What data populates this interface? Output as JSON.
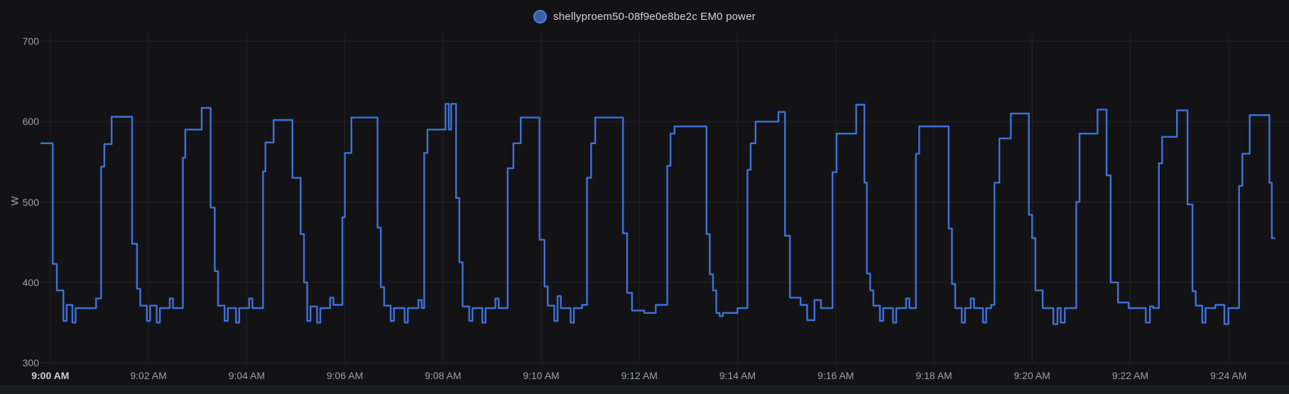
{
  "legend": {
    "series_label": "shellyproem50-08f9e0e8be2c EM0 power"
  },
  "colors": {
    "background": "#131316",
    "footer_band": "#1c1d21",
    "grid": "#222329",
    "axis_text": "#9da0a6",
    "axis_text_emphasis": "#cfd1d5",
    "legend_text": "#d4d5d8",
    "series_line": "#3e72d9",
    "legend_dot_fill": "#3b5da2",
    "legend_dot_ring": "#5180e2"
  },
  "chart_data": {
    "type": "line",
    "step_mode": "after",
    "title": "shellyproem50-08f9e0e8be2c EM0 power",
    "xlabel": "",
    "ylabel": "W",
    "unit": "W",
    "x_unit": "seconds after 9:00 AM",
    "xlim": [
      -12,
      1514
    ],
    "ylim": [
      300,
      700
    ],
    "grid": true,
    "legend_position": "top-center",
    "y_ticks": [
      {
        "v": 700,
        "label": "700"
      },
      {
        "v": 600,
        "label": "600"
      },
      {
        "v": 500,
        "label": "500"
      },
      {
        "v": 400,
        "label": "400"
      },
      {
        "v": 300,
        "label": "300"
      }
    ],
    "x_ticks": [
      {
        "t": 0,
        "label": "9:00 AM",
        "emphasis": true
      },
      {
        "t": 120,
        "label": "9:02 AM",
        "emphasis": false
      },
      {
        "t": 240,
        "label": "9:04 AM",
        "emphasis": false
      },
      {
        "t": 360,
        "label": "9:06 AM",
        "emphasis": false
      },
      {
        "t": 480,
        "label": "9:08 AM",
        "emphasis": false
      },
      {
        "t": 600,
        "label": "9:10 AM",
        "emphasis": false
      },
      {
        "t": 720,
        "label": "9:12 AM",
        "emphasis": false
      },
      {
        "t": 840,
        "label": "9:14 AM",
        "emphasis": false
      },
      {
        "t": 960,
        "label": "9:16 AM",
        "emphasis": false
      },
      {
        "t": 1080,
        "label": "9:18 AM",
        "emphasis": false
      },
      {
        "t": 1200,
        "label": "9:20 AM",
        "emphasis": false
      },
      {
        "t": 1320,
        "label": "9:22 AM",
        "emphasis": false
      },
      {
        "t": 1440,
        "label": "9:24 AM",
        "emphasis": false
      }
    ],
    "series": [
      {
        "name": "shellyproem50-08f9e0e8be2c EM0 power",
        "color": "#3e72d9",
        "points": [
          [
            -12,
            573
          ],
          [
            3,
            423
          ],
          [
            8,
            390
          ],
          [
            16,
            352
          ],
          [
            20,
            372
          ],
          [
            27,
            350
          ],
          [
            31,
            368
          ],
          [
            56,
            380
          ],
          [
            62,
            544
          ],
          [
            66,
            572
          ],
          [
            75,
            606
          ],
          [
            100,
            448
          ],
          [
            106,
            392
          ],
          [
            110,
            371
          ],
          [
            118,
            352
          ],
          [
            122,
            371
          ],
          [
            130,
            350
          ],
          [
            134,
            368
          ],
          [
            146,
            380
          ],
          [
            150,
            368
          ],
          [
            162,
            555
          ],
          [
            165,
            590
          ],
          [
            185,
            617
          ],
          [
            196,
            493
          ],
          [
            201,
            414
          ],
          [
            205,
            371
          ],
          [
            213,
            352
          ],
          [
            217,
            368
          ],
          [
            227,
            350
          ],
          [
            231,
            368
          ],
          [
            243,
            380
          ],
          [
            247,
            368
          ],
          [
            260,
            538
          ],
          [
            263,
            574
          ],
          [
            273,
            602
          ],
          [
            296,
            530
          ],
          [
            306,
            460
          ],
          [
            310,
            400
          ],
          [
            314,
            352
          ],
          [
            318,
            370
          ],
          [
            326,
            350
          ],
          [
            330,
            368
          ],
          [
            342,
            381
          ],
          [
            346,
            372
          ],
          [
            357,
            481
          ],
          [
            360,
            561
          ],
          [
            368,
            605
          ],
          [
            400,
            468
          ],
          [
            404,
            394
          ],
          [
            408,
            371
          ],
          [
            416,
            352
          ],
          [
            420,
            368
          ],
          [
            433,
            350
          ],
          [
            437,
            368
          ],
          [
            450,
            378
          ],
          [
            454,
            368
          ],
          [
            457,
            561
          ],
          [
            461,
            590
          ],
          [
            483,
            622
          ],
          [
            487,
            590
          ],
          [
            490,
            622
          ],
          [
            496,
            505
          ],
          [
            500,
            425
          ],
          [
            504,
            370
          ],
          [
            512,
            352
          ],
          [
            516,
            368
          ],
          [
            528,
            350
          ],
          [
            532,
            368
          ],
          [
            544,
            380
          ],
          [
            548,
            368
          ],
          [
            559,
            542
          ],
          [
            566,
            573
          ],
          [
            575,
            605
          ],
          [
            598,
            453
          ],
          [
            604,
            395
          ],
          [
            608,
            371
          ],
          [
            616,
            352
          ],
          [
            620,
            383
          ],
          [
            624,
            368
          ],
          [
            636,
            350
          ],
          [
            640,
            368
          ],
          [
            650,
            372
          ],
          [
            656,
            530
          ],
          [
            661,
            573
          ],
          [
            666,
            605
          ],
          [
            700,
            461
          ],
          [
            705,
            387
          ],
          [
            711,
            365
          ],
          [
            726,
            362
          ],
          [
            740,
            372
          ],
          [
            754,
            545
          ],
          [
            758,
            585
          ],
          [
            763,
            594
          ],
          [
            802,
            460
          ],
          [
            806,
            410
          ],
          [
            810,
            390
          ],
          [
            814,
            362
          ],
          [
            818,
            358
          ],
          [
            822,
            362
          ],
          [
            840,
            368
          ],
          [
            852,
            540
          ],
          [
            856,
            573
          ],
          [
            862,
            600
          ],
          [
            890,
            612
          ],
          [
            898,
            458
          ],
          [
            904,
            381
          ],
          [
            917,
            372
          ],
          [
            925,
            353
          ],
          [
            934,
            378
          ],
          [
            942,
            368
          ],
          [
            956,
            537
          ],
          [
            961,
            585
          ],
          [
            985,
            621
          ],
          [
            995,
            524
          ],
          [
            998,
            411
          ],
          [
            1002,
            390
          ],
          [
            1006,
            371
          ],
          [
            1014,
            352
          ],
          [
            1018,
            368
          ],
          [
            1030,
            350
          ],
          [
            1034,
            368
          ],
          [
            1046,
            380
          ],
          [
            1050,
            368
          ],
          [
            1058,
            560
          ],
          [
            1062,
            594
          ],
          [
            1098,
            467
          ],
          [
            1102,
            398
          ],
          [
            1106,
            368
          ],
          [
            1114,
            350
          ],
          [
            1118,
            368
          ],
          [
            1125,
            380
          ],
          [
            1129,
            368
          ],
          [
            1140,
            350
          ],
          [
            1144,
            368
          ],
          [
            1150,
            372
          ],
          [
            1154,
            524
          ],
          [
            1160,
            579
          ],
          [
            1174,
            610
          ],
          [
            1196,
            484
          ],
          [
            1200,
            455
          ],
          [
            1204,
            390
          ],
          [
            1213,
            368
          ],
          [
            1226,
            348
          ],
          [
            1231,
            368
          ],
          [
            1235,
            350
          ],
          [
            1240,
            368
          ],
          [
            1254,
            500
          ],
          [
            1258,
            585
          ],
          [
            1280,
            615
          ],
          [
            1291,
            533
          ],
          [
            1296,
            400
          ],
          [
            1305,
            375
          ],
          [
            1318,
            368
          ],
          [
            1339,
            350
          ],
          [
            1344,
            370
          ],
          [
            1348,
            368
          ],
          [
            1355,
            548
          ],
          [
            1359,
            581
          ],
          [
            1377,
            614
          ],
          [
            1390,
            497
          ],
          [
            1396,
            389
          ],
          [
            1400,
            371
          ],
          [
            1408,
            350
          ],
          [
            1412,
            368
          ],
          [
            1424,
            372
          ],
          [
            1435,
            348
          ],
          [
            1440,
            368
          ],
          [
            1453,
            520
          ],
          [
            1457,
            560
          ],
          [
            1466,
            608
          ],
          [
            1490,
            524
          ],
          [
            1493,
            455
          ],
          [
            1497,
            455
          ]
        ]
      }
    ]
  }
}
